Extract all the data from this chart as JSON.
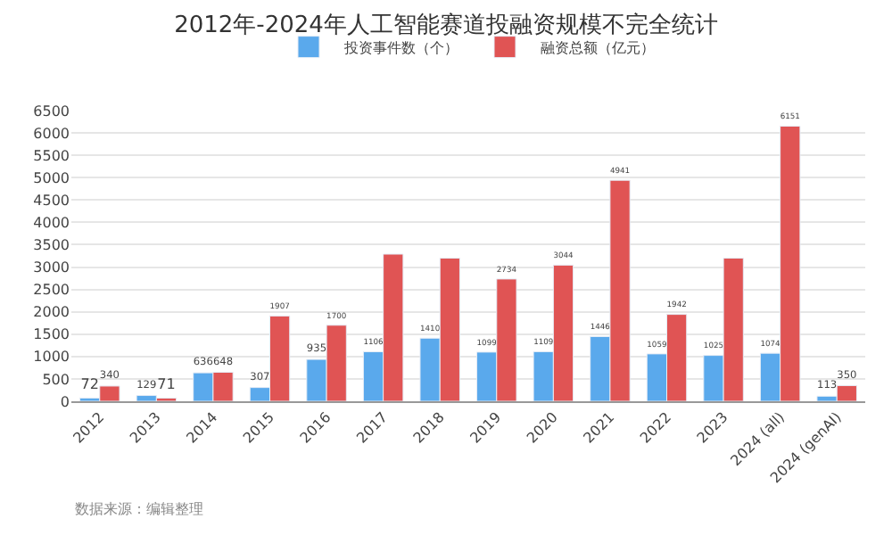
{
  "chart_data": {
    "type": "bar",
    "title": "2012年-2024年人工智能赛道投融资规模不完全统计",
    "categories": [
      "2012",
      "2013",
      "2014",
      "2015",
      "2016",
      "2017",
      "2018",
      "2019",
      "2020",
      "2021",
      "2022",
      "2023",
      "2024 (all)",
      "2024 (genAI)"
    ],
    "series": [
      {
        "name": "投资事件数（个）",
        "color": "#5aa9ec",
        "values": [
          72,
          129,
          636,
          307,
          935,
          1106,
          1410,
          1099,
          1109,
          1446,
          1059,
          1025,
          1074,
          113
        ],
        "value_labels": [
          "72",
          "129",
          "636",
          "307",
          "935",
          "1106",
          "1410",
          "1099",
          "1109",
          "1446",
          "1059",
          "1025",
          "1074",
          "113"
        ]
      },
      {
        "name": "融资总额（亿元）",
        "color": "#e05454",
        "values": [
          340,
          71,
          648,
          1907,
          1700,
          3290,
          3200,
          2734,
          3044,
          4941,
          1942,
          3200,
          6151,
          350
        ],
        "value_labels": [
          "340",
          "71",
          "648",
          "1907",
          "1700",
          null,
          null,
          "2734",
          "3044",
          "4941",
          "1942",
          null,
          "6151",
          "350"
        ]
      }
    ],
    "ylim": [
      0,
      6500
    ],
    "yticks": [
      0,
      500,
      1000,
      1500,
      2000,
      2500,
      3000,
      3500,
      4000,
      4500,
      5000,
      5500,
      6000,
      6500
    ],
    "grid": "y",
    "legend": "top",
    "annotations": [
      "数据来源：编辑整理"
    ]
  }
}
